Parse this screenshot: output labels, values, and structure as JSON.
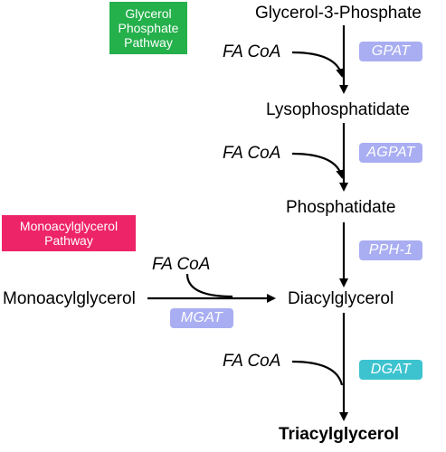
{
  "pathways": {
    "glycerol_phosphate": {
      "label": "Glycerol\nPhosphate\nPathway",
      "color": "#24b04b"
    },
    "monoacylglycerol": {
      "label": "Monoacylglycerol\nPathway",
      "color": "#ee2468"
    }
  },
  "metabolites": {
    "g3p": "Glycerol-3-Phosphate",
    "lysophosphatidate": "Lysophosphatidate",
    "phosphatidate": "Phosphatidate",
    "diacylglycerol": "Diacylglycerol",
    "monoacylglycerol": "Monoacylglycerol",
    "triacylglycerol": "Triacylglycerol"
  },
  "cosubstrate": "FA CoA",
  "enzymes": {
    "gpat": {
      "label": "GPAT",
      "color": "#a9aef2"
    },
    "agpat": {
      "label": "AGPAT",
      "color": "#a9aef2"
    },
    "pph1": {
      "label": "PPH-1",
      "color": "#a9aef2"
    },
    "mgat": {
      "label": "MGAT",
      "color": "#a9aef2"
    },
    "dgat": {
      "label": "DGAT",
      "color": "#3dc3cf"
    }
  }
}
